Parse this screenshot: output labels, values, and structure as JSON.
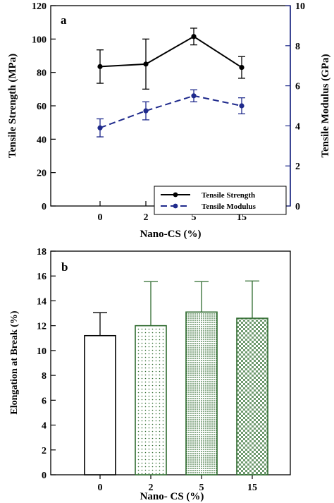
{
  "chart_data": [
    {
      "type": "line",
      "panel_label": "a",
      "categories": [
        "0",
        "2",
        "5",
        "15"
      ],
      "xlabel": "Nano-CS (%)",
      "ylabel": "Tensile Strength (MPa)",
      "y2label": "Tensile Modulus (GPa)",
      "ylim": [
        0,
        120
      ],
      "yticks": [
        0,
        20,
        40,
        60,
        80,
        100,
        120
      ],
      "y2lim": [
        0,
        10
      ],
      "y2ticks": [
        0,
        2,
        4,
        6,
        8,
        10
      ],
      "legend_position": "bottom-right",
      "grid": false,
      "series": [
        {
          "name": "Tensile Strength",
          "axis": "left",
          "values": [
            83.5,
            85,
            101.5,
            83
          ],
          "errors": [
            10,
            15,
            5,
            6.5
          ],
          "color": "#000000",
          "style": "solid"
        },
        {
          "name": "Tensile Modulus",
          "axis": "right",
          "values": [
            3.9,
            4.75,
            5.5,
            5.0
          ],
          "errors": [
            0.45,
            0.45,
            0.3,
            0.4
          ],
          "color": "#1f2a8c",
          "style": "dashed"
        }
      ]
    },
    {
      "type": "bar",
      "panel_label": "b",
      "categories": [
        "0",
        "2",
        "5",
        "15"
      ],
      "xlabel": "Nano- CS (%)",
      "ylabel": "Elongation at Break (%)",
      "ylim": [
        0,
        18
      ],
      "yticks": [
        0,
        2,
        4,
        6,
        8,
        10,
        12,
        14,
        16,
        18
      ],
      "grid": false,
      "values": [
        11.2,
        12,
        13.1,
        12.6
      ],
      "errors": [
        1.85,
        3.55,
        2.45,
        3.0
      ],
      "fills": [
        "none",
        "sparse-dots",
        "dense-dots",
        "checker"
      ],
      "bar_colors": [
        "#000000",
        "#2f6b2f",
        "#2f6b2f",
        "#2f6b2f"
      ]
    }
  ]
}
